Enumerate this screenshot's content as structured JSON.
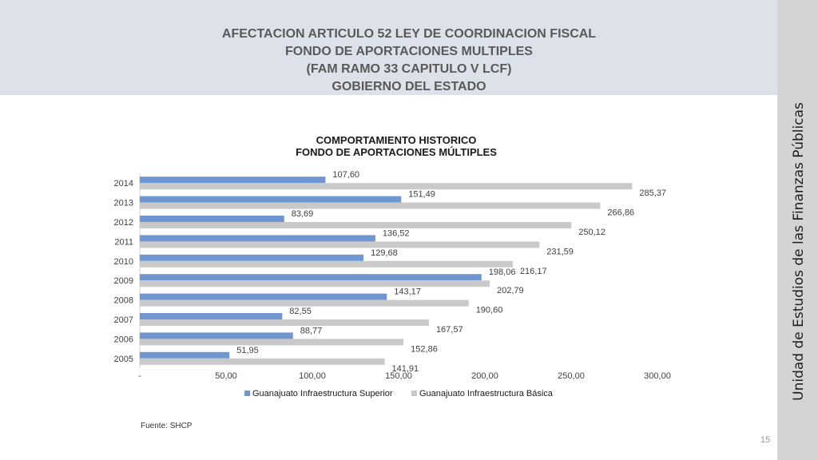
{
  "header": {
    "lines": [
      "AFECTACION ARTICULO 52 LEY DE COORDINACION FISCAL",
      "FONDO DE APORTACIONES MULTIPLES",
      "(FAM RAMO 33 CAPITULO V LCF)",
      "GOBIERNO DEL ESTADO"
    ]
  },
  "sidebar": {
    "text": "Unidad de Estudios de las Finanzas Públicas"
  },
  "footer": {
    "source": "Fuente: SHCP",
    "page_number": "15"
  },
  "colors": {
    "header_bg": "#dde2ea",
    "sidebar_bg": "#d4d4d4",
    "series_superior": "#7096d2",
    "series_basica": "#c9c9c9"
  },
  "chart_data": {
    "type": "bar",
    "orientation": "horizontal",
    "title": [
      "COMPORTAMIENTO HISTORICO",
      "FONDO DE APORTACIONES MÚLTIPLES"
    ],
    "categories": [
      "2014",
      "2013",
      "2012",
      "2011",
      "2010",
      "2009",
      "2008",
      "2007",
      "2006",
      "2005"
    ],
    "series": [
      {
        "name": "Guanajuato  Infraestructura Superior",
        "color": "#7096d2",
        "values": [
          107.6,
          151.49,
          83.69,
          136.52,
          129.68,
          198.06,
          143.17,
          82.55,
          88.77,
          51.95
        ],
        "labels": [
          "107,60",
          "151,49",
          "83,69",
          "136,52",
          "129,68",
          "198,06",
          "143,17",
          "82,55",
          "88,77",
          "51,95"
        ]
      },
      {
        "name": "Guanajuato  Infraestructura Básica",
        "color": "#c9c9c9",
        "values": [
          285.37,
          266.86,
          250.12,
          231.59,
          216.17,
          202.79,
          190.6,
          167.57,
          152.86,
          141.91
        ],
        "labels": [
          "285,37",
          "266,86",
          "250,12",
          "231,59",
          "216,17",
          "202,79",
          "190,60",
          "167,57",
          "152,86",
          "141,91"
        ]
      }
    ],
    "xlim": [
      0,
      300
    ],
    "xticks": [
      0,
      50,
      100,
      150,
      200,
      250,
      300
    ],
    "xtick_labels": [
      "-",
      "50,00",
      "100,00",
      "150,00",
      "200,00",
      "250,00",
      "300,00"
    ],
    "grid": false,
    "legend_position": "bottom"
  }
}
